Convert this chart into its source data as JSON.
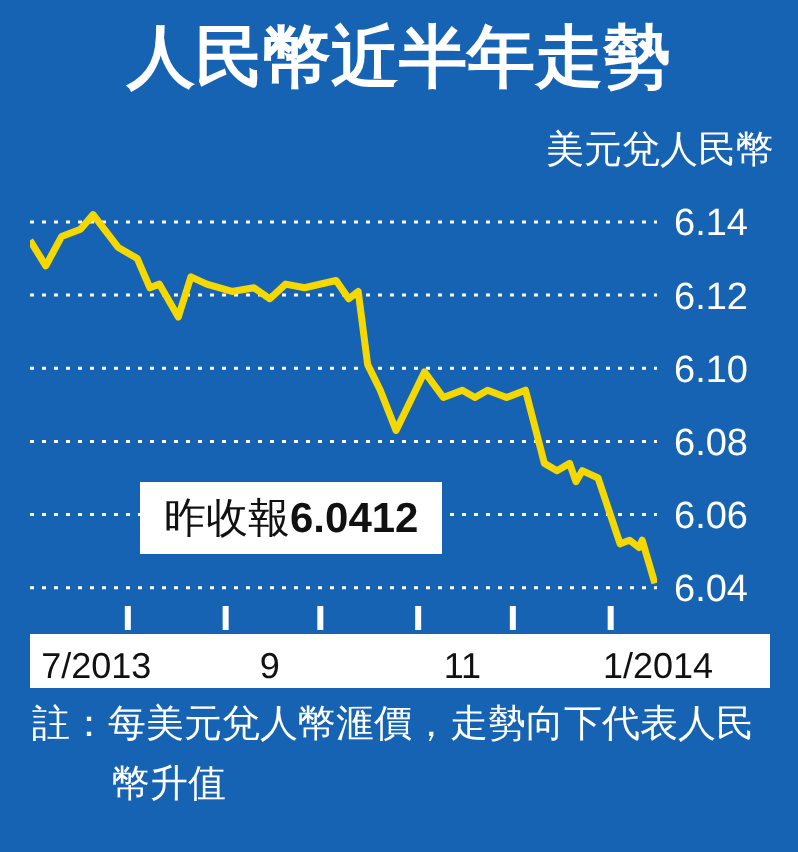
{
  "chart_data": {
    "type": "line",
    "title": "人民幣近半年走勢",
    "ylabel": "美元兌人民幣",
    "annotations": [
      "昨收報6.0412",
      "註：每美元兌人幣滙價，走勢向下代表人民幣升值"
    ],
    "x": [
      "2013-07-01",
      "2013-07-06",
      "2013-07-11",
      "2013-07-17",
      "2013-07-21",
      "2013-07-29",
      "2013-08-04",
      "2013-08-08",
      "2013-08-11",
      "2013-08-17",
      "2013-08-21",
      "2013-08-26",
      "2013-09-03",
      "2013-09-10",
      "2013-09-15",
      "2013-09-20",
      "2013-09-26",
      "2013-10-06",
      "2013-10-10",
      "2013-10-13",
      "2013-10-16",
      "2013-10-20",
      "2013-10-25",
      "2013-11-03",
      "2013-11-09",
      "2013-11-15",
      "2013-11-19",
      "2013-11-23",
      "2013-11-29",
      "2013-12-05",
      "2013-12-11",
      "2013-12-15",
      "2013-12-19",
      "2013-12-21",
      "2013-12-23",
      "2013-12-28",
      "2014-01-04",
      "2014-01-07",
      "2014-01-10",
      "2014-01-11",
      "2014-01-15"
    ],
    "series": [
      {
        "color": "#f5d800",
        "values": [
          6.135,
          6.128,
          6.136,
          6.138,
          6.142,
          6.133,
          6.13,
          6.122,
          6.123,
          6.114,
          6.125,
          6.123,
          6.121,
          6.122,
          6.119,
          6.123,
          6.122,
          6.124,
          6.119,
          6.121,
          6.101,
          6.094,
          6.083,
          6.099,
          6.092,
          6.094,
          6.092,
          6.094,
          6.092,
          6.094,
          6.074,
          6.072,
          6.074,
          6.069,
          6.072,
          6.07,
          6.052,
          6.053,
          6.051,
          6.053,
          6.0412
        ]
      }
    ],
    "xlim": [
      "2013-07-01",
      "2014-01-16"
    ],
    "xticks": [
      {
        "value": "2013-07-22",
        "label": "7/2013"
      },
      {
        "value": "2013-08-01",
        "label": null
      },
      {
        "value": "2013-09-01",
        "label": null
      },
      {
        "value": "2013-09-15",
        "label": "9"
      },
      {
        "value": "2013-10-01",
        "label": null
      },
      {
        "value": "2013-11-01",
        "label": null
      },
      {
        "value": "2013-11-15",
        "label": "11"
      },
      {
        "value": "2013-12-01",
        "label": null
      },
      {
        "value": "2014-01-01",
        "label": null
      },
      {
        "value": "2014-01-16",
        "label": "1/2014"
      }
    ],
    "ylim": [
      6.035,
      6.146
    ],
    "yticks": [
      6.04,
      6.06,
      6.08,
      {
        "value": 6.1,
        "label": "6.10"
      },
      6.12,
      6.14
    ],
    "grid": "y",
    "legend": false,
    "marker": "none",
    "line_style": "solid"
  }
}
